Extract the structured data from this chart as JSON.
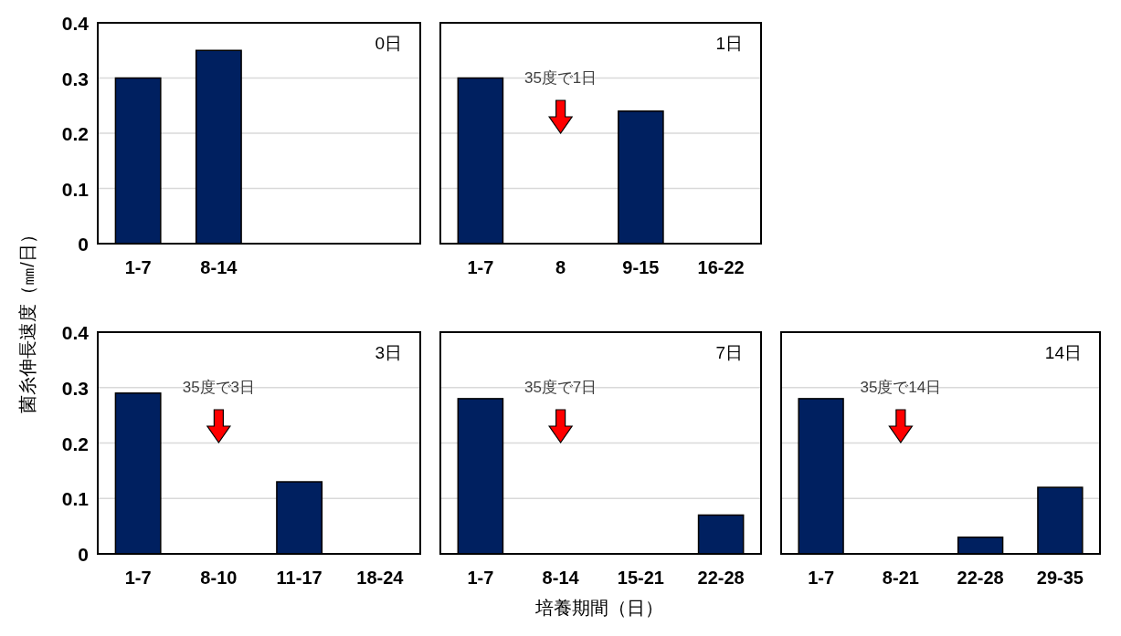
{
  "chart_data": [
    {
      "type": "bar",
      "title": "0日",
      "categories": [
        "1-7",
        "8-14",
        null,
        null
      ],
      "values": [
        0.3,
        0.35,
        null,
        null
      ],
      "color": "#002060",
      "ylim": [
        0,
        0.4
      ],
      "yticks": [
        0,
        0.1,
        0.2,
        0.3,
        0.4
      ],
      "grid": "y"
    },
    {
      "type": "bar",
      "title": "1日",
      "categories": [
        "1-7",
        "8",
        "9-15",
        "16-22"
      ],
      "values": [
        0.3,
        null,
        0.24,
        null
      ],
      "color": "#002060",
      "ylim": [
        0,
        0.4
      ],
      "yticks": [
        0,
        0.1,
        0.2,
        0.3,
        0.4
      ],
      "grid": "y",
      "tick_labels": "x",
      "annotations": [
        "35度で1日"
      ]
    },
    {
      "type": "bar",
      "title": "3日",
      "ylabel": "菌糸伸長速度（㎜/日）",
      "categories": [
        "1-7",
        "8-10",
        "11-17",
        "18-24"
      ],
      "values": [
        0.29,
        null,
        0.13,
        null
      ],
      "color": "#002060",
      "ylim": [
        0,
        0.4
      ],
      "yticks": [
        0,
        0.1,
        0.2,
        0.3,
        0.4
      ],
      "grid": "y",
      "annotations": [
        "35度で3日"
      ]
    },
    {
      "type": "bar",
      "title": "7日",
      "xlabel": "培養期間（日）",
      "categories": [
        "1-7",
        "8-14",
        "15-21",
        "22-28"
      ],
      "values": [
        0.28,
        null,
        null,
        0.07
      ],
      "color": "#002060",
      "ylim": [
        0,
        0.4
      ],
      "yticks": [
        0,
        0.1,
        0.2,
        0.3,
        0.4
      ],
      "grid": "y",
      "tick_labels": "x",
      "annotations": [
        "35度で7日"
      ]
    },
    {
      "type": "bar",
      "title": "14日",
      "categories": [
        "1-7",
        "8-21",
        "22-28",
        "29-35"
      ],
      "values": [
        0.28,
        null,
        0.03,
        0.12
      ],
      "color": "#002060",
      "ylim": [
        0,
        0.4
      ],
      "yticks": [
        0,
        0.1,
        0.2,
        0.3,
        0.4
      ],
      "grid": "y",
      "tick_labels": "x",
      "annotations": [
        "35度で14日"
      ]
    }
  ]
}
